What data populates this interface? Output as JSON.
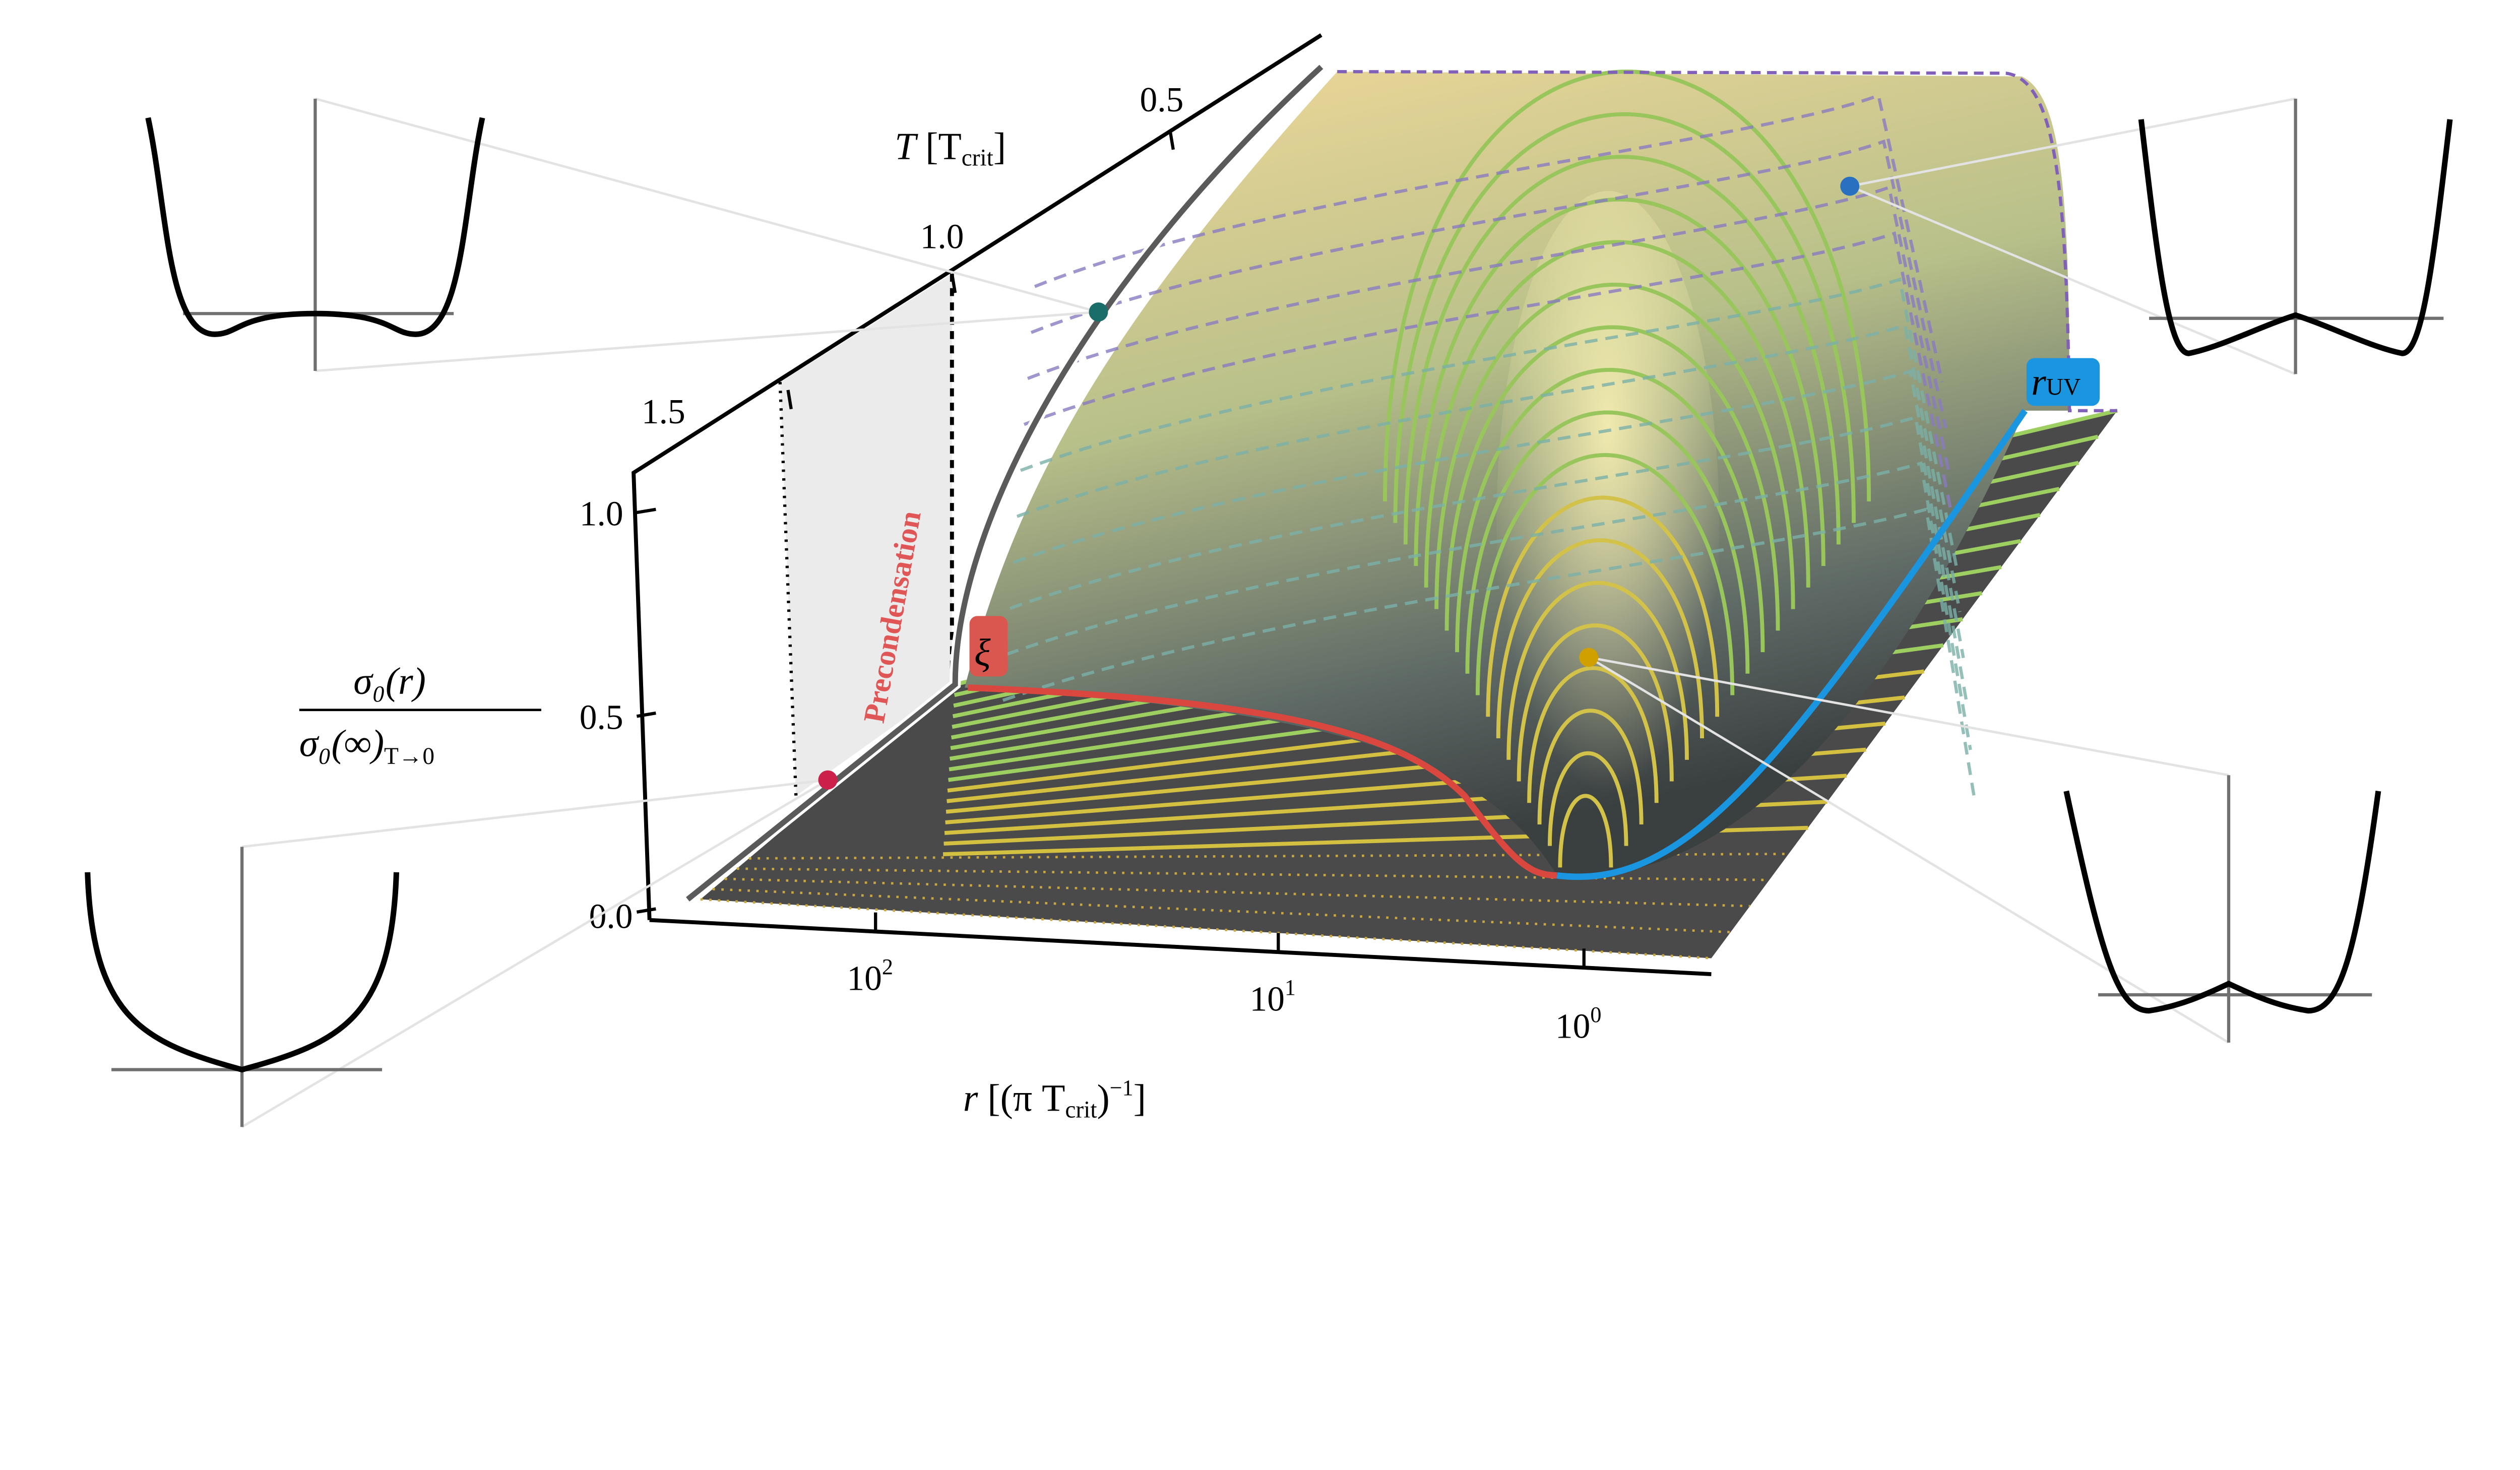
{
  "chart_data": {
    "type": "surface-3d",
    "title": "",
    "axes": {
      "x": {
        "label_main": "r",
        "label_unit": "[(π T",
        "label_sub": "crit",
        "label_tail": ")",
        "label_exp": "−1",
        "label_close": "]",
        "scale": "log",
        "direction": "decreasing",
        "ticks": [
          {
            "base": "10",
            "exp": "2"
          },
          {
            "base": "10",
            "exp": "1"
          },
          {
            "base": "10",
            "exp": "0"
          }
        ]
      },
      "y": {
        "label_main": "T",
        "label_unit": "[T",
        "label_sub": "crit",
        "label_close": "]",
        "ticks": [
          "1.5",
          "1.0",
          "0.5"
        ]
      },
      "z": {
        "label_num": "σ₀(r)",
        "label_den": "σ₀(∞)",
        "label_den_sub": "T→0",
        "ticks": [
          "1.0",
          "0.5",
          "0.0"
        ],
        "range": [
          0,
          1.1
        ]
      }
    },
    "annotations": {
      "region": "Precondensation",
      "xi_label": "ξ",
      "ruv_label": "r",
      "ruv_sub": "UV"
    },
    "insets": [
      {
        "position": "top-left",
        "shape": "double-well with flat center"
      },
      {
        "position": "top-right",
        "shape": "double-well with cusp at center"
      },
      {
        "position": "bottom-left",
        "shape": "single well"
      },
      {
        "position": "bottom-right",
        "shape": "shallow double-well"
      }
    ],
    "colors": {
      "xi_line": "#d9473f",
      "ruv_line": "#1a96e0",
      "floor": "#4a4a4a",
      "panel": "#ebebeb",
      "point_teal": "#1a6e6a",
      "point_blue": "#2a70c0",
      "point_gold": "#d0a000",
      "point_crimson": "#cc1f4a"
    }
  }
}
